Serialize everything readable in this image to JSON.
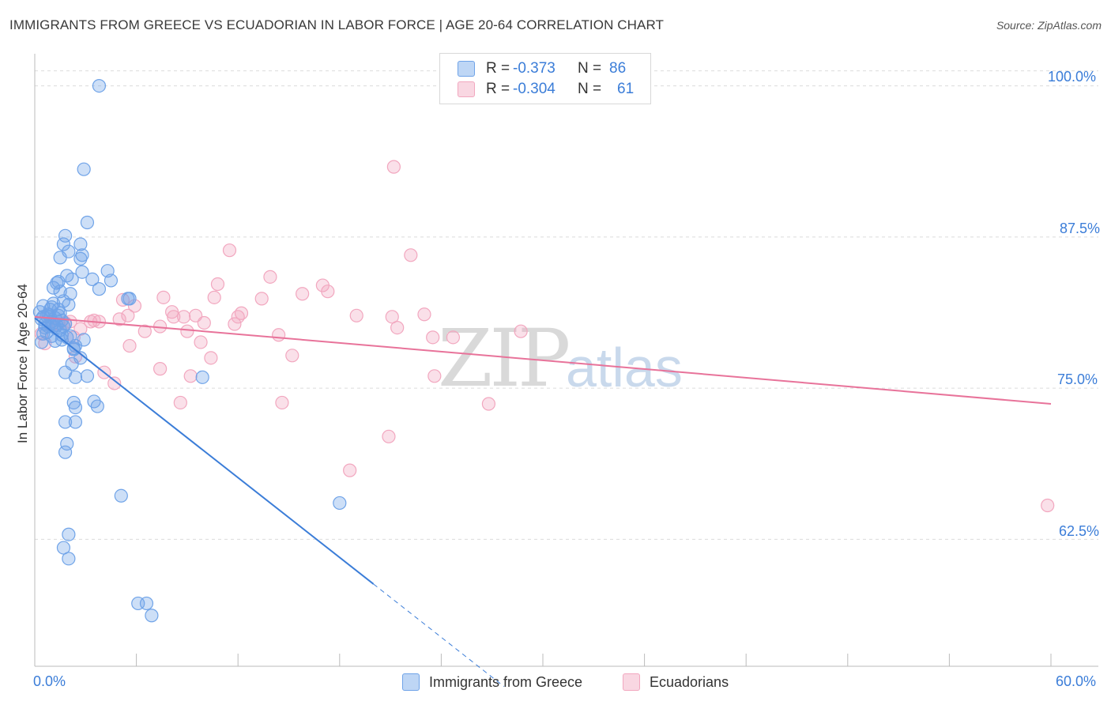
{
  "title": "IMMIGRANTS FROM GREECE VS ECUADORIAN IN LABOR FORCE | AGE 20-64 CORRELATION CHART",
  "source": "Source: ZipAtlas.com",
  "watermark": {
    "zip": "ZIP",
    "atlas": "atlas"
  },
  "legend": {
    "rows": [
      {
        "r_label": "R =",
        "r_value": "-0.373",
        "n_label": "N =",
        "n_value": "86",
        "color": "#6fa3e8"
      },
      {
        "r_label": "R =",
        "r_value": "-0.304",
        "n_label": "N =",
        "n_value": "61",
        "color": "#f2a7bf"
      }
    ]
  },
  "bottom_legend": {
    "series1": "Immigrants from Greece",
    "series2": "Ecuadorians"
  },
  "chart_data": {
    "type": "scatter",
    "title": "IMMIGRANTS FROM GREECE VS ECUADORIAN IN LABOR FORCE | AGE 20-64 CORRELATION CHART",
    "xlabel": "",
    "ylabel": "In Labor Force | Age 20-64",
    "x_range": [
      0,
      60
    ],
    "y_range": [
      52.0,
      102.0
    ],
    "x_tick_labels": [
      "0.0%",
      "60.0%"
    ],
    "y_ticks": [
      62.5,
      75.0,
      87.5,
      100.0
    ],
    "y_tick_labels": [
      "62.5%",
      "75.0%",
      "87.5%",
      "100.0%"
    ],
    "grid": true,
    "series": [
      {
        "name": "Immigrants from Greece",
        "color": "#3b7dd8",
        "fill": "rgba(111,163,232,0.35)",
        "trend": {
          "x0": 0.0,
          "y0": 80.8,
          "x1": 20.0,
          "y1": 58.8,
          "dash_to_x": 27.7
        },
        "points": [
          [
            0.3,
            81.3
          ],
          [
            0.4,
            80.7
          ],
          [
            0.5,
            81.8
          ],
          [
            0.6,
            80.3
          ],
          [
            0.7,
            81.0
          ],
          [
            0.5,
            79.5
          ],
          [
            0.4,
            78.8
          ],
          [
            0.8,
            80.1
          ],
          [
            0.9,
            81.5
          ],
          [
            1.0,
            80.5
          ],
          [
            1.1,
            82.0
          ],
          [
            1.2,
            80.8
          ],
          [
            1.0,
            79.3
          ],
          [
            1.3,
            80.2
          ],
          [
            1.4,
            81.0
          ],
          [
            1.5,
            79.8
          ],
          [
            1.6,
            80.6
          ],
          [
            1.2,
            78.9
          ],
          [
            0.7,
            79.6
          ],
          [
            0.9,
            80.9
          ],
          [
            1.1,
            83.3
          ],
          [
            1.3,
            83.7
          ],
          [
            1.5,
            83.0
          ],
          [
            1.7,
            82.2
          ],
          [
            1.9,
            84.3
          ],
          [
            1.4,
            83.8
          ],
          [
            2.0,
            81.9
          ],
          [
            2.2,
            84.0
          ],
          [
            1.8,
            80.3
          ],
          [
            2.1,
            79.3
          ],
          [
            1.6,
            79.0
          ],
          [
            2.4,
            78.5
          ],
          [
            1.4,
            81.5
          ],
          [
            1.0,
            81.7
          ],
          [
            0.6,
            80.0
          ],
          [
            0.8,
            81.1
          ],
          [
            1.2,
            80.0
          ],
          [
            1.5,
            81.2
          ],
          [
            1.7,
            80.1
          ],
          [
            0.5,
            80.9
          ],
          [
            3.8,
            100.0
          ],
          [
            2.9,
            93.1
          ],
          [
            3.1,
            88.7
          ],
          [
            1.8,
            87.6
          ],
          [
            1.7,
            86.9
          ],
          [
            2.0,
            86.3
          ],
          [
            2.7,
            86.9
          ],
          [
            1.5,
            85.8
          ],
          [
            2.7,
            85.7
          ],
          [
            2.8,
            86.0
          ],
          [
            2.8,
            84.6
          ],
          [
            3.4,
            84.0
          ],
          [
            4.3,
            84.7
          ],
          [
            4.5,
            83.9
          ],
          [
            5.5,
            82.4
          ],
          [
            3.8,
            83.2
          ],
          [
            5.6,
            82.4
          ],
          [
            1.8,
            76.3
          ],
          [
            3.1,
            76.0
          ],
          [
            2.4,
            75.9
          ],
          [
            2.2,
            77.0
          ],
          [
            2.3,
            78.2
          ],
          [
            2.3,
            78.3
          ],
          [
            2.7,
            77.5
          ],
          [
            3.5,
            73.9
          ],
          [
            3.7,
            73.5
          ],
          [
            2.3,
            73.8
          ],
          [
            2.4,
            73.4
          ],
          [
            1.8,
            72.2
          ],
          [
            2.4,
            72.2
          ],
          [
            1.9,
            70.4
          ],
          [
            1.8,
            69.7
          ],
          [
            5.1,
            66.1
          ],
          [
            2.0,
            62.9
          ],
          [
            1.7,
            61.8
          ],
          [
            2.0,
            60.9
          ],
          [
            6.1,
            57.2
          ],
          [
            6.6,
            57.2
          ],
          [
            6.9,
            56.2
          ],
          [
            9.9,
            75.9
          ],
          [
            18.0,
            65.5
          ],
          [
            1.1,
            80.4
          ],
          [
            2.9,
            79.0
          ],
          [
            2.1,
            82.8
          ],
          [
            1.6,
            79.4
          ],
          [
            1.9,
            79.2
          ]
        ]
      },
      {
        "name": "Ecuadorians",
        "color": "#e8739a",
        "fill": "rgba(242,167,191,0.35)",
        "trend": {
          "x0": 0.0,
          "y0": 80.9,
          "x1": 60.0,
          "y1": 73.7
        },
        "points": [
          [
            0.4,
            79.5
          ],
          [
            0.6,
            78.7
          ],
          [
            1.0,
            80.2
          ],
          [
            1.4,
            80.3
          ],
          [
            1.8,
            80.4
          ],
          [
            2.1,
            80.5
          ],
          [
            2.7,
            79.9
          ],
          [
            3.3,
            80.5
          ],
          [
            3.5,
            80.6
          ],
          [
            2.3,
            79.2
          ],
          [
            2.4,
            77.6
          ],
          [
            3.8,
            80.5
          ],
          [
            5.2,
            82.3
          ],
          [
            5.5,
            81.0
          ],
          [
            5.0,
            80.7
          ],
          [
            5.9,
            81.8
          ],
          [
            6.5,
            79.7
          ],
          [
            7.4,
            80.1
          ],
          [
            7.6,
            82.5
          ],
          [
            8.1,
            81.3
          ],
          [
            8.2,
            80.9
          ],
          [
            8.8,
            80.9
          ],
          [
            9.0,
            79.7
          ],
          [
            9.5,
            81.0
          ],
          [
            9.8,
            78.8
          ],
          [
            10.0,
            80.4
          ],
          [
            10.4,
            77.5
          ],
          [
            10.6,
            82.5
          ],
          [
            10.8,
            83.6
          ],
          [
            11.8,
            80.3
          ],
          [
            12.0,
            80.9
          ],
          [
            12.2,
            81.2
          ],
          [
            13.4,
            82.4
          ],
          [
            13.9,
            84.2
          ],
          [
            14.4,
            79.4
          ],
          [
            15.2,
            77.7
          ],
          [
            15.8,
            82.8
          ],
          [
            17.0,
            83.5
          ],
          [
            17.3,
            83.0
          ],
          [
            19.0,
            81.0
          ],
          [
            21.1,
            80.9
          ],
          [
            21.4,
            80.0
          ],
          [
            22.2,
            86.0
          ],
          [
            23.0,
            81.1
          ],
          [
            23.5,
            79.2
          ],
          [
            24.7,
            79.2
          ],
          [
            28.7,
            79.7
          ],
          [
            11.5,
            86.4
          ],
          [
            21.2,
            93.3
          ],
          [
            4.1,
            76.3
          ],
          [
            4.7,
            75.4
          ],
          [
            7.4,
            76.6
          ],
          [
            8.6,
            73.8
          ],
          [
            9.2,
            76.0
          ],
          [
            14.6,
            73.8
          ],
          [
            20.9,
            71.0
          ],
          [
            18.6,
            68.2
          ],
          [
            26.8,
            73.7
          ],
          [
            23.6,
            76.0
          ],
          [
            59.8,
            65.3
          ],
          [
            5.6,
            78.5
          ]
        ]
      }
    ]
  }
}
